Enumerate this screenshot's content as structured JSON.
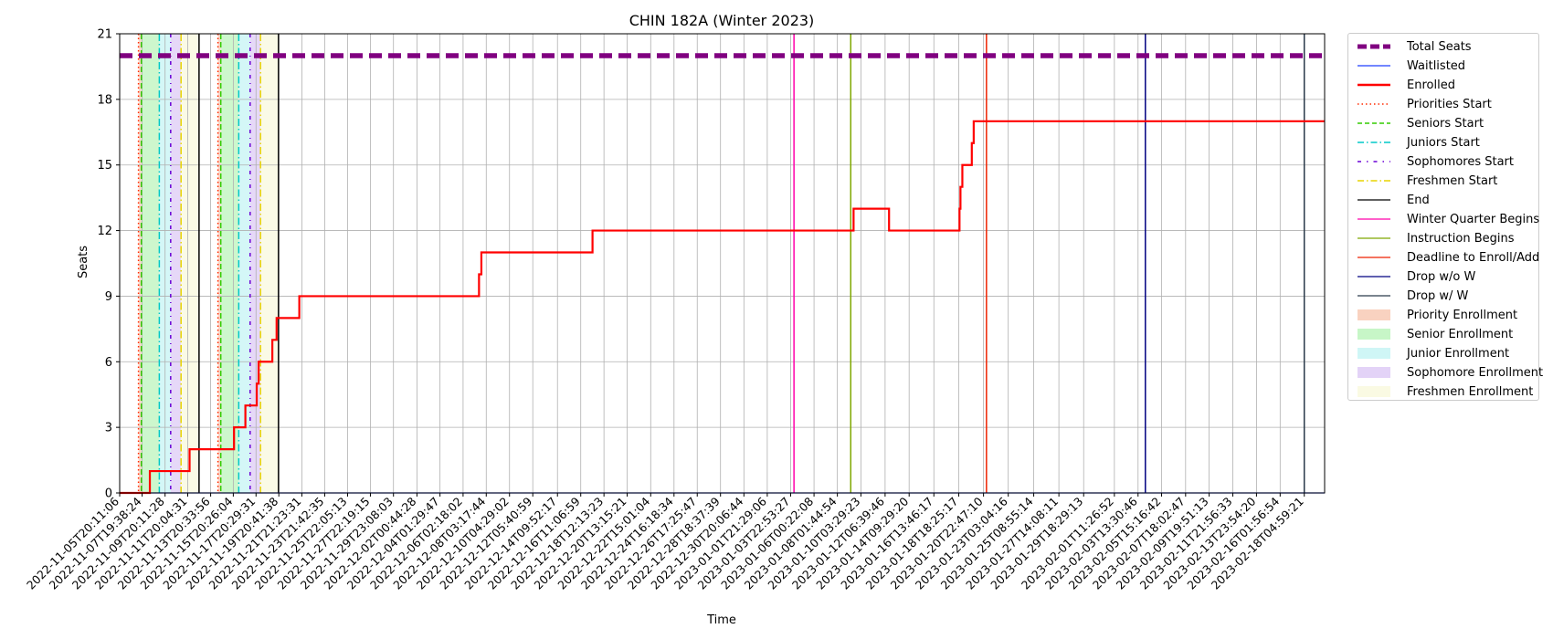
{
  "chart_data": {
    "type": "line",
    "title": "CHIN 182A (Winter 2023)",
    "xlabel": "Time",
    "ylabel": "Seats",
    "ylim": [
      0,
      21
    ],
    "yticks": [
      0,
      3,
      6,
      9,
      12,
      15,
      18,
      21
    ],
    "xlim": [
      "2022-11-05T20:11:06",
      "2023-02-20T00:00:00"
    ],
    "grid": true,
    "legend_position": "outside-right",
    "xtick_labels": [
      "2022-11-05T20:11:06",
      "2022-11-07T19:38:24",
      "2022-11-09T20:11:28",
      "2022-11-11T20:04:31",
      "2022-11-13T20:33:56",
      "2022-11-15T20:26:04",
      "2022-11-17T20:29:31",
      "2022-11-19T20:41:38",
      "2022-11-21T21:23:31",
      "2022-11-23T21:42:35",
      "2022-11-25T22:05:13",
      "2022-11-27T22:19:15",
      "2022-11-29T23:08:03",
      "2022-12-02T00:44:28",
      "2022-12-04T01:29:47",
      "2022-12-06T02:18:02",
      "2022-12-08T03:17:44",
      "2022-12-10T04:29:02",
      "2022-12-12T05:40:59",
      "2022-12-14T09:52:17",
      "2022-12-16T11:06:59",
      "2022-12-18T12:13:23",
      "2022-12-20T13:15:21",
      "2022-12-22T15:01:04",
      "2022-12-24T16:18:34",
      "2022-12-26T17:25:47",
      "2022-12-28T18:37:39",
      "2022-12-30T20:06:44",
      "2023-01-01T21:29:06",
      "2023-01-03T22:53:27",
      "2023-01-06T00:22:08",
      "2023-01-08T01:44:54",
      "2023-01-10T03:29:23",
      "2023-01-12T06:39:46",
      "2023-01-14T09:29:20",
      "2023-01-16T13:46:17",
      "2023-01-18T18:25:17",
      "2023-01-20T22:47:10",
      "2023-01-23T03:04:16",
      "2023-01-25T08:55:14",
      "2023-01-27T14:08:11",
      "2023-01-29T18:29:13",
      "2023-02-01T11:26:52",
      "2023-02-03T13:30:46",
      "2023-02-05T15:16:42",
      "2023-02-07T18:02:47",
      "2023-02-09T19:51:13",
      "2023-02-11T21:56:33",
      "2023-02-13T23:54:20",
      "2023-02-16T01:56:54",
      "2023-02-18T04:59:21"
    ],
    "series": [
      {
        "name": "Total Seats",
        "color": "#800080",
        "style": "dashed-thick",
        "points": [
          [
            "2022-11-05T20:11:06",
            20
          ],
          [
            "2023-02-20T00:00:00",
            20
          ]
        ]
      },
      {
        "name": "Waitlisted",
        "color": "#1f3fff",
        "style": "solid-thin",
        "points": [
          [
            "2022-11-05T20:11:06",
            0
          ],
          [
            "2023-02-20T00:00:00",
            0
          ]
        ]
      },
      {
        "name": "Enrolled",
        "color": "#ff0000",
        "style": "step",
        "points": [
          [
            "2022-11-05T20:11:06",
            0
          ],
          [
            "2022-11-08T12:00:00",
            1
          ],
          [
            "2022-11-12T00:00:00",
            2
          ],
          [
            "2022-11-15T22:00:00",
            3
          ],
          [
            "2022-11-16T22:00:00",
            4
          ],
          [
            "2022-11-17T22:00:00",
            5
          ],
          [
            "2022-11-18T02:00:00",
            6
          ],
          [
            "2022-11-19T07:00:00",
            7
          ],
          [
            "2022-11-19T16:00:00",
            8
          ],
          [
            "2022-11-21T16:00:00",
            9
          ],
          [
            "2022-12-07T12:00:00",
            10
          ],
          [
            "2022-12-07T17:00:00",
            11
          ],
          [
            "2022-12-17T12:00:00",
            12
          ],
          [
            "2023-01-09T12:00:00",
            13
          ],
          [
            "2023-01-12T15:00:00",
            12
          ],
          [
            "2023-01-18T20:00:00",
            13
          ],
          [
            "2023-01-18T22:00:00",
            14
          ],
          [
            "2023-01-19T02:00:00",
            15
          ],
          [
            "2023-01-19T22:00:00",
            16
          ],
          [
            "2023-01-20T02:00:00",
            17
          ],
          [
            "2023-02-20T00:00:00",
            17
          ]
        ]
      }
    ],
    "vertical_markers": [
      {
        "name": "Priorities Start",
        "color": "#ff2a00",
        "style": "dotted",
        "times": [
          "2022-11-07T12:00:00",
          "2022-11-14T12:00:00"
        ]
      },
      {
        "name": "Seniors Start",
        "color": "#33cc00",
        "style": "dashed",
        "times": [
          "2022-11-07T18:00:00",
          "2022-11-14T18:00:00"
        ]
      },
      {
        "name": "Juniors Start",
        "color": "#00c8c8",
        "style": "dashdot",
        "times": [
          "2022-11-09T08:00:00",
          "2022-11-16T08:00:00"
        ]
      },
      {
        "name": "Sophomores Start",
        "color": "#6a00d5",
        "style": "dashdot-dense",
        "times": [
          "2022-11-10T08:00:00",
          "2022-11-17T08:00:00"
        ]
      },
      {
        "name": "Freshmen Start",
        "color": "#e8d400",
        "style": "dashdot",
        "times": [
          "2022-11-11T06:00:00",
          "2022-11-18T06:00:00"
        ]
      },
      {
        "name": "End",
        "color": "#000000",
        "style": "solid",
        "times": [
          "2022-11-12T20:00:00",
          "2022-11-19T20:00:00"
        ]
      },
      {
        "name": "Winter Quarter Begins",
        "color": "#ff00aa",
        "style": "solid",
        "times": [
          "2023-01-04T06:00:00"
        ]
      },
      {
        "name": "Instruction Begins",
        "color": "#7fa800",
        "style": "solid",
        "times": [
          "2023-01-09T06:00:00"
        ]
      },
      {
        "name": "Deadline to Enroll/Add",
        "color": "#ee2200",
        "style": "solid",
        "times": [
          "2023-01-21T05:00:00"
        ]
      },
      {
        "name": "Drop w/o W",
        "color": "#000080",
        "style": "solid",
        "times": [
          "2023-02-04T05:00:00"
        ]
      },
      {
        "name": "Drop w/ W",
        "color": "#2a3a4a",
        "style": "solid",
        "times": [
          "2023-02-18T05:00:00"
        ]
      }
    ],
    "shaded_periods": [
      {
        "name": "Priority Enrollment",
        "color": "#f4a582",
        "ranges": [
          [
            "2022-11-07T12:00:00",
            "2022-11-07T18:00:00"
          ],
          [
            "2022-11-14T12:00:00",
            "2022-11-14T18:00:00"
          ]
        ]
      },
      {
        "name": "Senior Enrollment",
        "color": "#90ee90",
        "ranges": [
          [
            "2022-11-07T18:00:00",
            "2022-11-09T08:00:00"
          ],
          [
            "2022-11-14T18:00:00",
            "2022-11-16T08:00:00"
          ]
        ]
      },
      {
        "name": "Junior Enrollment",
        "color": "#a0eeee",
        "ranges": [
          [
            "2022-11-09T08:00:00",
            "2022-11-10T08:00:00"
          ],
          [
            "2022-11-16T08:00:00",
            "2022-11-17T08:00:00"
          ]
        ]
      },
      {
        "name": "Sophomore Enrollment",
        "color": "#c8a8f0",
        "ranges": [
          [
            "2022-11-10T08:00:00",
            "2022-11-11T06:00:00"
          ],
          [
            "2022-11-17T08:00:00",
            "2022-11-18T06:00:00"
          ]
        ]
      },
      {
        "name": "Freshmen Enrollment",
        "color": "#f5f5c8",
        "ranges": [
          [
            "2022-11-11T06:00:00",
            "2022-11-12T20:00:00"
          ],
          [
            "2022-11-18T06:00:00",
            "2022-11-19T20:00:00"
          ]
        ]
      }
    ],
    "legend": [
      {
        "label": "Total Seats",
        "color": "#800080",
        "kind": "line-thick-dashed"
      },
      {
        "label": "Waitlisted",
        "color": "#1f3fff",
        "kind": "line"
      },
      {
        "label": "Enrolled",
        "color": "#ff0000",
        "kind": "line-thick"
      },
      {
        "label": "Priorities Start",
        "color": "#ff2a00",
        "kind": "dotted"
      },
      {
        "label": "Seniors Start",
        "color": "#33cc00",
        "kind": "dashed"
      },
      {
        "label": "Juniors Start",
        "color": "#00c8c8",
        "kind": "dashdot"
      },
      {
        "label": "Sophomores Start",
        "color": "#6a00d5",
        "kind": "dashdot-dense"
      },
      {
        "label": "Freshmen Start",
        "color": "#e8d400",
        "kind": "dashdot"
      },
      {
        "label": "End",
        "color": "#000000",
        "kind": "line"
      },
      {
        "label": "Winter Quarter Begins",
        "color": "#ff00aa",
        "kind": "line"
      },
      {
        "label": "Instruction Begins",
        "color": "#7fa800",
        "kind": "line"
      },
      {
        "label": "Deadline to Enroll/Add",
        "color": "#ee2200",
        "kind": "line"
      },
      {
        "label": "Drop w/o W",
        "color": "#000080",
        "kind": "line"
      },
      {
        "label": "Drop w/ W",
        "color": "#2a3a4a",
        "kind": "line"
      },
      {
        "label": "Priority Enrollment",
        "color": "#f4a582",
        "kind": "patch"
      },
      {
        "label": "Senior Enrollment",
        "color": "#90ee90",
        "kind": "patch"
      },
      {
        "label": "Junior Enrollment",
        "color": "#a0eeee",
        "kind": "patch"
      },
      {
        "label": "Sophomore Enrollment",
        "color": "#c8a8f0",
        "kind": "patch"
      },
      {
        "label": "Freshmen Enrollment",
        "color": "#f5f5c8",
        "kind": "patch"
      }
    ]
  }
}
